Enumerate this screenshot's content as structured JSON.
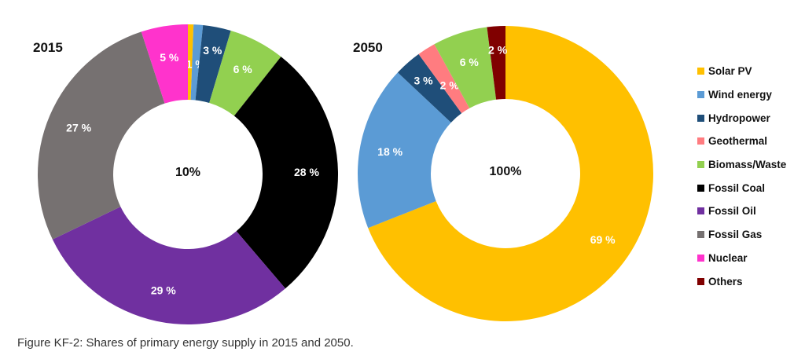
{
  "chart_data": {
    "type": "pie",
    "caption": "Figure KF-2: Shares of primary energy supply in 2015 and 2050.",
    "legend_position": "right",
    "legend": [
      {
        "name": "Solar PV",
        "color": "#FFC000"
      },
      {
        "name": "Wind energy",
        "color": "#5B9BD5"
      },
      {
        "name": "Hydropower",
        "color": "#1F4E79"
      },
      {
        "name": "Geothermal",
        "color": "#FF7C80"
      },
      {
        "name": "Biomass/Waste",
        "color": "#92D050"
      },
      {
        "name": "Fossil Coal",
        "color": "#000000"
      },
      {
        "name": "Fossil Oil",
        "color": "#7030A0"
      },
      {
        "name": "Fossil Gas",
        "color": "#767171"
      },
      {
        "name": "Nuclear",
        "color": "#FF33CC"
      },
      {
        "name": "Others",
        "color": "#800000"
      }
    ],
    "charts": [
      {
        "title": "2015",
        "center_label": "10%",
        "slices": [
          {
            "name": "Solar PV",
            "value": 0.6,
            "label": null
          },
          {
            "name": "Wind energy",
            "value": 1,
            "label": "1 %"
          },
          {
            "name": "Hydropower",
            "value": 3,
            "label": "3 %"
          },
          {
            "name": "Biomass/Waste",
            "value": 6,
            "label": "6 %"
          },
          {
            "name": "Fossil Coal",
            "value": 28,
            "label": "28 %"
          },
          {
            "name": "Fossil Oil",
            "value": 29,
            "label": "29 %"
          },
          {
            "name": "Fossil Gas",
            "value": 27,
            "label": "27 %"
          },
          {
            "name": "Nuclear",
            "value": 5,
            "label": "5 %"
          }
        ]
      },
      {
        "title": "2050",
        "center_label": "100%",
        "slices": [
          {
            "name": "Solar PV",
            "value": 69,
            "label": "69 %"
          },
          {
            "name": "Wind energy",
            "value": 18,
            "label": "18 %"
          },
          {
            "name": "Hydropower",
            "value": 3,
            "label": "3 %"
          },
          {
            "name": "Geothermal",
            "value": 2,
            "label": "2 %"
          },
          {
            "name": "Biomass/Waste",
            "value": 6,
            "label": "6 %"
          },
          {
            "name": "Others",
            "value": 2,
            "label": "2 %"
          }
        ]
      }
    ]
  }
}
